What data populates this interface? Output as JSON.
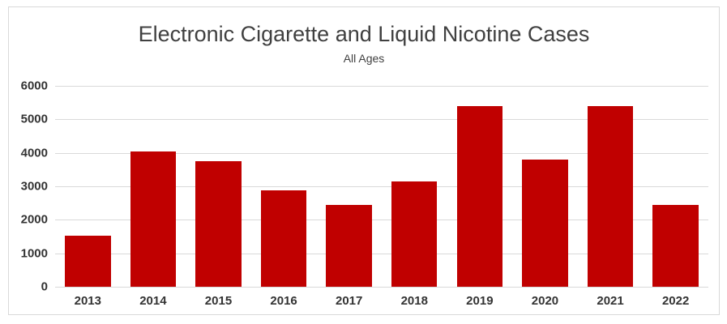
{
  "chart": {
    "title": "Electronic Cigarette and Liquid Nicotine Cases",
    "subtitle": "All Ages"
  },
  "chart_data": {
    "type": "bar",
    "title": "Electronic Cigarette and Liquid Nicotine Cases",
    "subtitle": "All Ages",
    "categories": [
      "2013",
      "2014",
      "2015",
      "2016",
      "2017",
      "2018",
      "2019",
      "2020",
      "2021",
      "2022"
    ],
    "values": [
      1530,
      4030,
      3740,
      2880,
      2450,
      3150,
      5390,
      3810,
      5390,
      2440
    ],
    "xlabel": "",
    "ylabel": "",
    "ylim": [
      0,
      6000
    ],
    "yticks": [
      0,
      1000,
      2000,
      3000,
      4000,
      5000,
      6000
    ],
    "grid": true,
    "legend": false,
    "bar_color": "#C00000",
    "gridline_color": "#D9D9D9",
    "frame_border_color": "#D9D9D9",
    "title_color": "#404040",
    "tick_label_color": "#333333"
  }
}
